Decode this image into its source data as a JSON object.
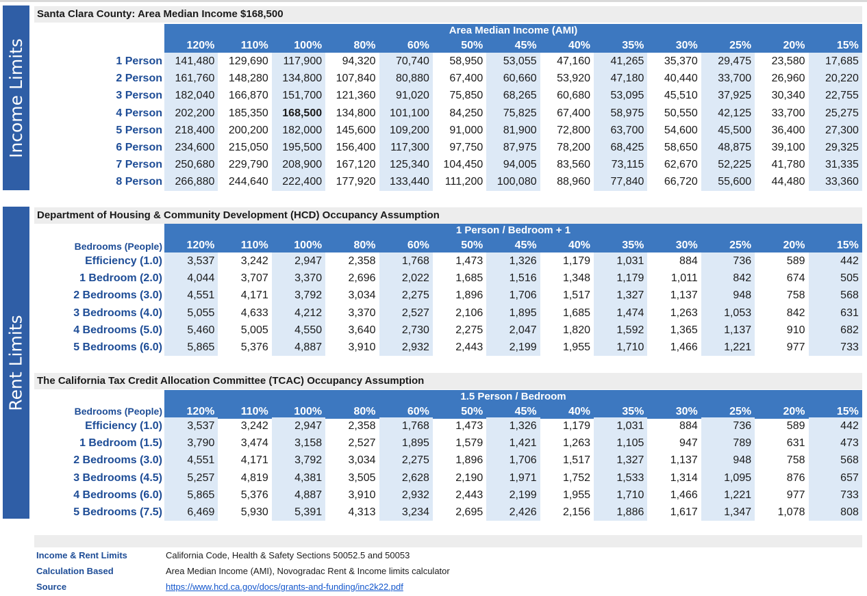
{
  "sidebars": {
    "income": "Income Limits",
    "rent": "Rent Limits"
  },
  "percent_headers": [
    "120%",
    "110%",
    "100%",
    "80%",
    "60%",
    "50%",
    "45%",
    "40%",
    "35%",
    "30%",
    "25%",
    "20%",
    "15%"
  ],
  "income": {
    "title": "Santa Clara County: Area Median Income $168,500",
    "header_title": "Area Median Income (AMI)",
    "highlight": {
      "row": 3,
      "col": 2
    },
    "rows": [
      {
        "label": "1 Person",
        "values": [
          "141,480",
          "129,690",
          "117,900",
          "94,320",
          "70,740",
          "58,950",
          "53,055",
          "47,160",
          "41,265",
          "35,370",
          "29,475",
          "23,580",
          "17,685"
        ]
      },
      {
        "label": "2 Person",
        "values": [
          "161,760",
          "148,280",
          "134,800",
          "107,840",
          "80,880",
          "67,400",
          "60,660",
          "53,920",
          "47,180",
          "40,440",
          "33,700",
          "26,960",
          "20,220"
        ]
      },
      {
        "label": "3 Person",
        "values": [
          "182,040",
          "166,870",
          "151,700",
          "121,360",
          "91,020",
          "75,850",
          "68,265",
          "60,680",
          "53,095",
          "45,510",
          "37,925",
          "30,340",
          "22,755"
        ]
      },
      {
        "label": "4 Person",
        "values": [
          "202,200",
          "185,350",
          "168,500",
          "134,800",
          "101,100",
          "84,250",
          "75,825",
          "67,400",
          "58,975",
          "50,550",
          "42,125",
          "33,700",
          "25,275"
        ]
      },
      {
        "label": "5 Person",
        "values": [
          "218,400",
          "200,200",
          "182,000",
          "145,600",
          "109,200",
          "91,000",
          "81,900",
          "72,800",
          "63,700",
          "54,600",
          "45,500",
          "36,400",
          "27,300"
        ]
      },
      {
        "label": "6 Person",
        "values": [
          "234,600",
          "215,050",
          "195,500",
          "156,400",
          "117,300",
          "97,750",
          "87,975",
          "78,200",
          "68,425",
          "58,650",
          "48,875",
          "39,100",
          "29,325"
        ]
      },
      {
        "label": "7 Person",
        "values": [
          "250,680",
          "229,790",
          "208,900",
          "167,120",
          "125,340",
          "104,450",
          "94,005",
          "83,560",
          "73,115",
          "62,670",
          "52,225",
          "41,780",
          "31,335"
        ]
      },
      {
        "label": "8 Person",
        "values": [
          "266,880",
          "244,640",
          "222,400",
          "177,920",
          "133,440",
          "111,200",
          "100,080",
          "88,960",
          "77,840",
          "66,720",
          "55,600",
          "44,480",
          "33,360"
        ]
      }
    ]
  },
  "hcd": {
    "title": "Department of Housing & Community Development (HCD) Occupancy Assumption",
    "header_title": "1 Person / Bedroom + 1",
    "column_label": "Bedrooms (People)",
    "rows": [
      {
        "label": "Efficiency (1.0)",
        "values": [
          "3,537",
          "3,242",
          "2,947",
          "2,358",
          "1,768",
          "1,473",
          "1,326",
          "1,179",
          "1,031",
          "884",
          "736",
          "589",
          "442"
        ]
      },
      {
        "label": "1 Bedroom (2.0)",
        "values": [
          "4,044",
          "3,707",
          "3,370",
          "2,696",
          "2,022",
          "1,685",
          "1,516",
          "1,348",
          "1,179",
          "1,011",
          "842",
          "674",
          "505"
        ]
      },
      {
        "label": "2 Bedrooms (3.0)",
        "values": [
          "4,551",
          "4,171",
          "3,792",
          "3,034",
          "2,275",
          "1,896",
          "1,706",
          "1,517",
          "1,327",
          "1,137",
          "948",
          "758",
          "568"
        ]
      },
      {
        "label": "3 Bedrooms (4.0)",
        "values": [
          "5,055",
          "4,633",
          "4,212",
          "3,370",
          "2,527",
          "2,106",
          "1,895",
          "1,685",
          "1,474",
          "1,263",
          "1,053",
          "842",
          "631"
        ]
      },
      {
        "label": "4 Bedrooms (5.0)",
        "values": [
          "5,460",
          "5,005",
          "4,550",
          "3,640",
          "2,730",
          "2,275",
          "2,047",
          "1,820",
          "1,592",
          "1,365",
          "1,137",
          "910",
          "682"
        ]
      },
      {
        "label": "5 Bedrooms (6.0)",
        "values": [
          "5,865",
          "5,376",
          "4,887",
          "3,910",
          "2,932",
          "2,443",
          "2,199",
          "1,955",
          "1,710",
          "1,466",
          "1,221",
          "977",
          "733"
        ]
      }
    ]
  },
  "tcac": {
    "title": "The California Tax Credit Allocation Committee (TCAC) Occupancy Assumption",
    "header_title": "1.5 Person / Bedroom",
    "column_label": "Bedrooms (People)",
    "rows": [
      {
        "label": "Efficiency (1.0)",
        "values": [
          "3,537",
          "3,242",
          "2,947",
          "2,358",
          "1,768",
          "1,473",
          "1,326",
          "1,179",
          "1,031",
          "884",
          "736",
          "589",
          "442"
        ]
      },
      {
        "label": "1 Bedroom (1.5)",
        "values": [
          "3,790",
          "3,474",
          "3,158",
          "2,527",
          "1,895",
          "1,579",
          "1,421",
          "1,263",
          "1,105",
          "947",
          "789",
          "631",
          "473"
        ]
      },
      {
        "label": "2 Bedrooms (3.0)",
        "values": [
          "4,551",
          "4,171",
          "3,792",
          "3,034",
          "2,275",
          "1,896",
          "1,706",
          "1,517",
          "1,327",
          "1,137",
          "948",
          "758",
          "568"
        ]
      },
      {
        "label": "3 Bedrooms (4.5)",
        "values": [
          "5,257",
          "4,819",
          "4,381",
          "3,505",
          "2,628",
          "2,190",
          "1,971",
          "1,752",
          "1,533",
          "1,314",
          "1,095",
          "876",
          "657"
        ]
      },
      {
        "label": "4 Bedrooms (6.0)",
        "values": [
          "5,865",
          "5,376",
          "4,887",
          "3,910",
          "2,932",
          "2,443",
          "2,199",
          "1,955",
          "1,710",
          "1,466",
          "1,221",
          "977",
          "733"
        ]
      },
      {
        "label": "5 Bedrooms (7.5)",
        "values": [
          "6,469",
          "5,930",
          "5,391",
          "4,313",
          "3,234",
          "2,695",
          "2,426",
          "2,156",
          "1,886",
          "1,617",
          "1,347",
          "1,078",
          "808"
        ]
      }
    ]
  },
  "footer": {
    "income_label": "Income & Rent Limits",
    "income_value": "California Code, Health & Safety  Sections 50052.5 and 50053",
    "calc_label": "Calculation Based",
    "calc_value": "Area Median Income (AMI), Novogradac Rent & Income limits calculator",
    "source_label": "Source",
    "source_value": "https://www.hcd.ca.gov/docs/grants-and-funding/inc2k22.pdf"
  },
  "colors": {
    "sidebar": "#2f5ea6",
    "header": "#3d78c0",
    "shade": "#dde9f6",
    "label": "#1d4c96"
  }
}
